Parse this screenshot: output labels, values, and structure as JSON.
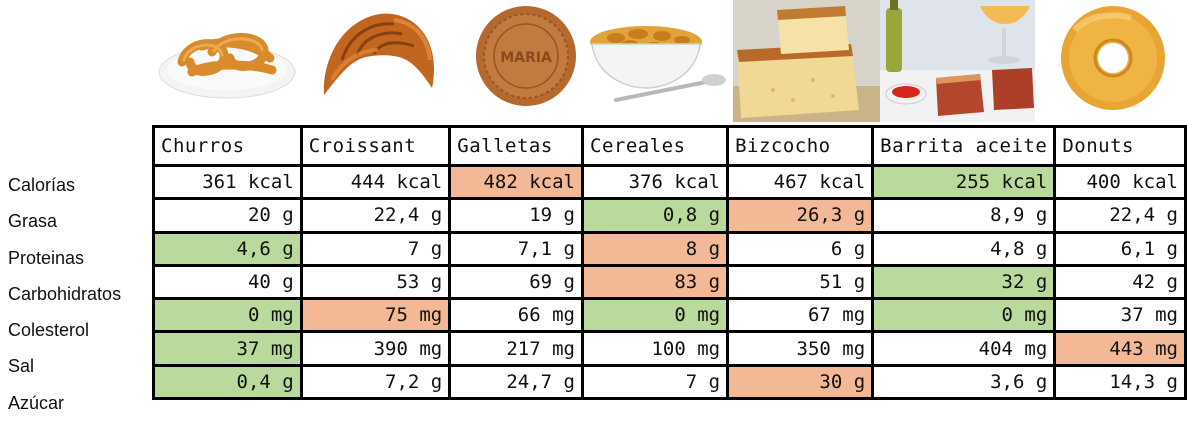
{
  "foods": [
    {
      "name": "Churros",
      "icon": "churros-image"
    },
    {
      "name": "Croissant",
      "icon": "croissant-image"
    },
    {
      "name": "Galletas",
      "icon": "cookie-image"
    },
    {
      "name": "Cereales",
      "icon": "cereal-bowl-image"
    },
    {
      "name": "Bizcocho",
      "icon": "sponge-cake-image"
    },
    {
      "name": "Barrita aceite",
      "icon": "toast-with-oil-image"
    },
    {
      "name": "Donuts",
      "icon": "donut-image"
    }
  ],
  "cookie_text": "MARIA",
  "colors": {
    "good": "#b9d99d",
    "bad": "#f3b896"
  },
  "rows": [
    {
      "label": "Calorías",
      "cells": [
        {
          "value": "361 kcal",
          "mark": ""
        },
        {
          "value": "444 kcal",
          "mark": ""
        },
        {
          "value": "482 kcal",
          "mark": "bad"
        },
        {
          "value": "376 kcal",
          "mark": ""
        },
        {
          "value": "467 kcal",
          "mark": ""
        },
        {
          "value": "255 kcal",
          "mark": "good"
        },
        {
          "value": "400 kcal",
          "mark": ""
        }
      ]
    },
    {
      "label": "Grasa",
      "cells": [
        {
          "value": "20 g",
          "mark": ""
        },
        {
          "value": "22,4 g",
          "mark": ""
        },
        {
          "value": "19 g",
          "mark": ""
        },
        {
          "value": "0,8 g",
          "mark": "good"
        },
        {
          "value": "26,3 g",
          "mark": "bad"
        },
        {
          "value": "8,9 g",
          "mark": ""
        },
        {
          "value": "22,4 g",
          "mark": ""
        }
      ]
    },
    {
      "label": "Proteinas",
      "cells": [
        {
          "value": "4,6 g",
          "mark": "good"
        },
        {
          "value": "7 g",
          "mark": ""
        },
        {
          "value": "7,1 g",
          "mark": ""
        },
        {
          "value": "8 g",
          "mark": "bad"
        },
        {
          "value": "6 g",
          "mark": ""
        },
        {
          "value": "4,8 g",
          "mark": ""
        },
        {
          "value": "6,1 g",
          "mark": ""
        }
      ]
    },
    {
      "label": "Carbohidratos",
      "cells": [
        {
          "value": "40 g",
          "mark": ""
        },
        {
          "value": "53 g",
          "mark": ""
        },
        {
          "value": "69 g",
          "mark": ""
        },
        {
          "value": "83 g",
          "mark": "bad"
        },
        {
          "value": "51 g",
          "mark": ""
        },
        {
          "value": "32 g",
          "mark": "good"
        },
        {
          "value": "42 g",
          "mark": ""
        }
      ]
    },
    {
      "label": "Colesterol",
      "cells": [
        {
          "value": "0 mg",
          "mark": "good"
        },
        {
          "value": "75 mg",
          "mark": "bad"
        },
        {
          "value": "66 mg",
          "mark": ""
        },
        {
          "value": "0 mg",
          "mark": "good"
        },
        {
          "value": "67 mg",
          "mark": ""
        },
        {
          "value": "0 mg",
          "mark": "good"
        },
        {
          "value": "37 mg",
          "mark": ""
        }
      ]
    },
    {
      "label": "Sal",
      "cells": [
        {
          "value": "37 mg",
          "mark": "good"
        },
        {
          "value": "390 mg",
          "mark": ""
        },
        {
          "value": "217 mg",
          "mark": ""
        },
        {
          "value": "100 mg",
          "mark": ""
        },
        {
          "value": "350 mg",
          "mark": ""
        },
        {
          "value": "404 mg",
          "mark": ""
        },
        {
          "value": "443 mg",
          "mark": "bad"
        }
      ]
    },
    {
      "label": "Azúcar",
      "cells": [
        {
          "value": "0,4 g",
          "mark": "good"
        },
        {
          "value": "7,2 g",
          "mark": ""
        },
        {
          "value": "24,7 g",
          "mark": ""
        },
        {
          "value": "7 g",
          "mark": ""
        },
        {
          "value": "30 g",
          "mark": "bad"
        },
        {
          "value": "3,6 g",
          "mark": ""
        },
        {
          "value": "14,3 g",
          "mark": ""
        }
      ]
    }
  ]
}
